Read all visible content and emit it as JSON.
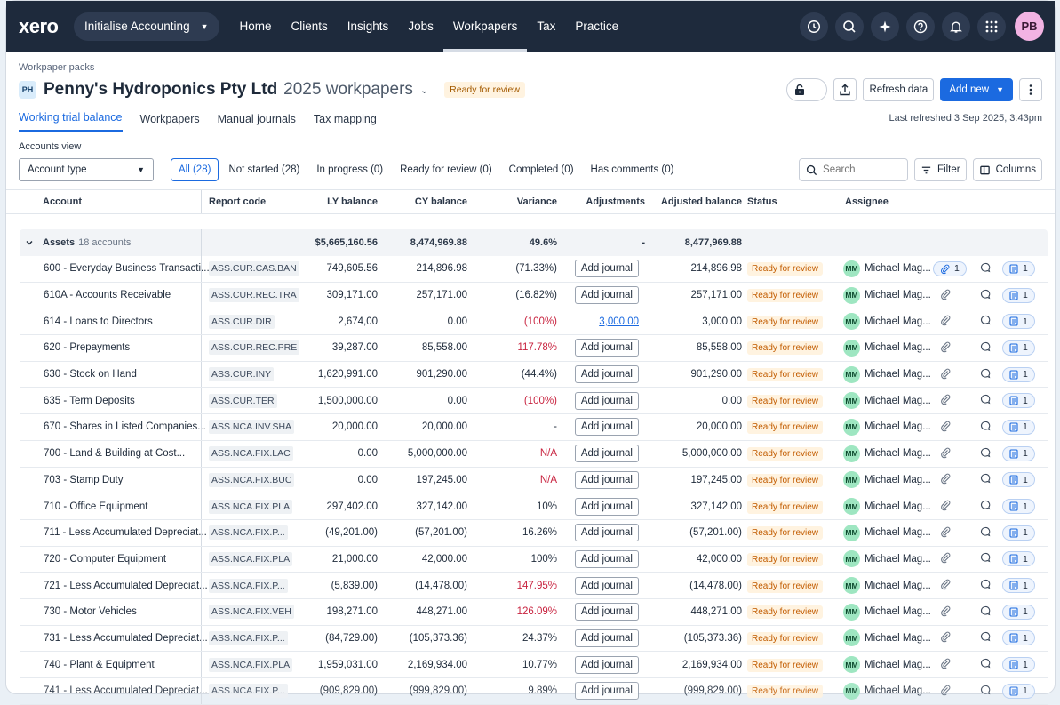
{
  "nav": {
    "logo": "xero",
    "org": "Initialise Accounting",
    "items": [
      "Home",
      "Clients",
      "Insights",
      "Jobs",
      "Workpapers",
      "Tax",
      "Practice"
    ],
    "active": "Workpapers",
    "avatar": "PB"
  },
  "header": {
    "breadcrumb": "Workpaper packs",
    "org_initials": "PH",
    "org_name": "Penny's Hydroponics Pty Ltd",
    "workpapers": "2025 workpapers",
    "status": "Ready for review",
    "refresh_label": "Refresh data",
    "add_new_label": "Add new"
  },
  "tabs": [
    "Working trial balance",
    "Workpapers",
    "Manual journals",
    "Tax mapping"
  ],
  "last_refreshed": "Last refreshed 3 Sep 2025, 3:43pm",
  "accounts_view": {
    "label": "Accounts view",
    "selected": "Account type"
  },
  "filters": [
    "All (28)",
    "Not started (28)",
    "In progress (0)",
    "Ready for review (0)",
    "Completed (0)",
    "Has comments (0)"
  ],
  "search": {
    "placeholder": "Search"
  },
  "filter_label": "Filter",
  "columns_label": "Columns",
  "columns": [
    "Account",
    "Report code",
    "LY balance",
    "CY balance",
    "Variance",
    "Adjustments",
    "Adjusted balance",
    "Status",
    "Assignee"
  ],
  "group": {
    "name": "Assets",
    "count": "18 accounts",
    "ly": "$5,665,160.56",
    "cy": "8,474,969.88",
    "variance": "49.6%",
    "adjustments": "-",
    "adjusted": "8,477,969.88"
  },
  "add_journal_label": "Add journal",
  "assignee": {
    "initials": "MM",
    "name": "Michael Mag..."
  },
  "status_label": "Ready for review",
  "rows": [
    {
      "account": "600 - Everyday Business Transacti...",
      "code": "ASS.CUR.CAS.BAN",
      "ly": "749,605.56",
      "cy": "214,896.98",
      "var": "(71.33%)",
      "var_red": false,
      "adj": "",
      "adjusted": "214,896.98",
      "attach": "1",
      "docs": "1"
    },
    {
      "account": "610A - Accounts Receivable",
      "code": "ASS.CUR.REC.TRA",
      "ly": "309,171.00",
      "cy": "257,171.00",
      "var": "(16.82%)",
      "var_red": false,
      "adj": "",
      "adjusted": "257,171.00",
      "attach": "",
      "docs": "1"
    },
    {
      "account": "614 - Loans to Directors",
      "code": "ASS.CUR.DIR",
      "ly": "2,674,00",
      "cy": "0.00",
      "var": "(100%)",
      "var_red": true,
      "adj": "3,000.00",
      "adjusted": "3,000.00",
      "attach": "",
      "docs": "1"
    },
    {
      "account": "620 - Prepayments",
      "code": "ASS.CUR.REC.PRE",
      "ly": "39,287.00",
      "cy": "85,558.00",
      "var": "117.78%",
      "var_red": true,
      "adj": "",
      "adjusted": "85,558.00",
      "attach": "",
      "docs": "1"
    },
    {
      "account": "630 - Stock on Hand",
      "code": "ASS.CUR.INY",
      "ly": "1,620,991.00",
      "cy": "901,290.00",
      "var": "(44.4%)",
      "var_red": false,
      "adj": "",
      "adjusted": "901,290.00",
      "attach": "",
      "docs": "1"
    },
    {
      "account": "635 - Term Deposits",
      "code": "ASS.CUR.TER",
      "ly": "1,500,000.00",
      "cy": "0.00",
      "var": "(100%)",
      "var_red": true,
      "adj": "",
      "adjusted": "0.00",
      "attach": "",
      "docs": "1"
    },
    {
      "account": "670 - Shares in Listed Companies...",
      "code": "ASS.NCA.INV.SHA",
      "ly": "20,000.00",
      "cy": "20,000.00",
      "var": "-",
      "var_red": false,
      "adj": "",
      "adjusted": "20,000.00",
      "attach": "",
      "docs": "1"
    },
    {
      "account": "700 - Land & Building at Cost...",
      "code": "ASS.NCA.FIX.LAC",
      "ly": "0.00",
      "cy": "5,000,000.00",
      "var": "N/A",
      "var_red": true,
      "adj": "",
      "adjusted": "5,000,000.00",
      "attach": "",
      "docs": "1"
    },
    {
      "account": "703 - Stamp Duty",
      "code": "ASS.NCA.FIX.BUC",
      "ly": "0.00",
      "cy": "197,245.00",
      "var": "N/A",
      "var_red": true,
      "adj": "",
      "adjusted": "197,245.00",
      "attach": "",
      "docs": "1"
    },
    {
      "account": "710 - Office Equipment",
      "code": "ASS.NCA.FIX.PLA",
      "ly": "297,402.00",
      "cy": "327,142.00",
      "var": "10%",
      "var_red": false,
      "adj": "",
      "adjusted": "327,142.00",
      "attach": "",
      "docs": "1"
    },
    {
      "account": "711 - Less Accumulated Depreciat...",
      "code": "ASS.NCA.FIX.P...",
      "ly": "(49,201.00)",
      "cy": "(57,201.00)",
      "var": "16.26%",
      "var_red": false,
      "adj": "",
      "adjusted": "(57,201.00)",
      "attach": "",
      "docs": "1"
    },
    {
      "account": "720 - Computer Equipment",
      "code": "ASS.NCA.FIX.PLA",
      "ly": "21,000.00",
      "cy": "42,000.00",
      "var": "100%",
      "var_red": false,
      "adj": "",
      "adjusted": "42,000.00",
      "attach": "",
      "docs": "1"
    },
    {
      "account": "721 - Less Accumulated Depreciat...",
      "code": "ASS.NCA.FIX.P...",
      "ly": "(5,839.00)",
      "cy": "(14,478.00)",
      "var": "147.95%",
      "var_red": true,
      "adj": "",
      "adjusted": "(14,478.00)",
      "attach": "",
      "docs": "1"
    },
    {
      "account": "730 - Motor Vehicles",
      "code": "ASS.NCA.FIX.VEH",
      "ly": "198,271.00",
      "cy": "448,271.00",
      "var": "126.09%",
      "var_red": true,
      "adj": "",
      "adjusted": "448,271.00",
      "attach": "",
      "docs": "1"
    },
    {
      "account": "731 - Less Accumulated Depreciat...",
      "code": "ASS.NCA.FIX.P...",
      "ly": "(84,729.00)",
      "cy": "(105,373.36)",
      "var": "24.37%",
      "var_red": false,
      "adj": "",
      "adjusted": "(105,373.36)",
      "attach": "",
      "docs": "1"
    },
    {
      "account": "740 - Plant & Equipment",
      "code": "ASS.NCA.FIX.PLA",
      "ly": "1,959,031.00",
      "cy": "2,169,934.00",
      "var": "10.77%",
      "var_red": false,
      "adj": "",
      "adjusted": "2,169,934.00",
      "attach": "",
      "docs": "1"
    },
    {
      "account": "741 - Less Accumulated Depreciat...",
      "code": "ASS.NCA.FIX.P...",
      "ly": "(909,829.00)",
      "cy": "(999,829.00)",
      "var": "9.89%",
      "var_red": false,
      "adj": "",
      "adjusted": "(999,829.00)",
      "attach": "",
      "docs": "1"
    }
  ],
  "colors": {
    "nav_bg": "#1e2a3c",
    "accent": "#1b6ae0",
    "status_bg": "#fff3e0",
    "status_fg": "#c25c00",
    "variance_red": "#c8233f"
  },
  "icons": [
    "clock-icon",
    "search-icon",
    "sparkle-icon",
    "help-icon",
    "bell-icon",
    "apps-grid-icon",
    "lock-icon",
    "share-icon",
    "more-icon",
    "filter-icon",
    "columns-icon",
    "chevron-down-icon",
    "paperclip-icon",
    "comment-icon",
    "document-icon"
  ]
}
